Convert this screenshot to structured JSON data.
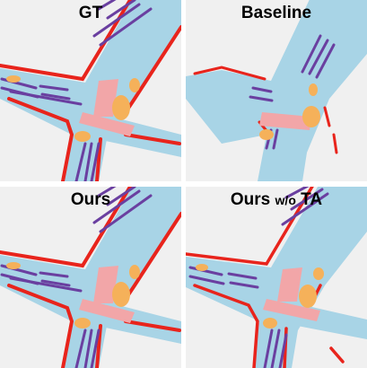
{
  "colors": {
    "background": "#f0f0f0",
    "drivable_area": "#a8d4e6",
    "lane_divider": "#6a3fa0",
    "road_boundary": "#e8241c",
    "ped_crossing": "#f2a6a8",
    "vehicle": "#f5b15a"
  },
  "panels": [
    {
      "id": "gt",
      "title": "GT"
    },
    {
      "id": "baseline",
      "title": "Baseline"
    },
    {
      "id": "ours",
      "title": "Ours"
    },
    {
      "id": "ours_wo_ta",
      "title_main": "Ours",
      "title_small": "w/o",
      "title_end": "TA"
    }
  ]
}
